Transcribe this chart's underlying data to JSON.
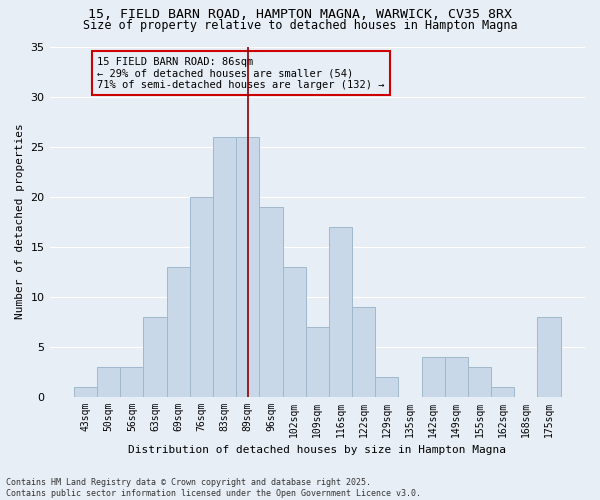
{
  "title1": "15, FIELD BARN ROAD, HAMPTON MAGNA, WARWICK, CV35 8RX",
  "title2": "Size of property relative to detached houses in Hampton Magna",
  "xlabel": "Distribution of detached houses by size in Hampton Magna",
  "ylabel": "Number of detached properties",
  "categories": [
    "43sqm",
    "50sqm",
    "56sqm",
    "63sqm",
    "69sqm",
    "76sqm",
    "83sqm",
    "89sqm",
    "96sqm",
    "102sqm",
    "109sqm",
    "116sqm",
    "122sqm",
    "129sqm",
    "135sqm",
    "142sqm",
    "149sqm",
    "155sqm",
    "162sqm",
    "168sqm",
    "175sqm"
  ],
  "values": [
    1,
    3,
    3,
    8,
    13,
    20,
    26,
    26,
    19,
    13,
    7,
    17,
    9,
    2,
    0,
    4,
    4,
    3,
    1,
    0,
    8
  ],
  "bar_color": "#c8d8e8",
  "bar_edgecolor": "#a0b8cc",
  "annotation_text": "15 FIELD BARN ROAD: 86sqm\n← 29% of detached houses are smaller (54)\n71% of semi-detached houses are larger (132) →",
  "vline_color": "#8b0000",
  "vline_x": 7.0,
  "ylim": [
    0,
    35
  ],
  "yticks": [
    0,
    5,
    10,
    15,
    20,
    25,
    30,
    35
  ],
  "footer": "Contains HM Land Registry data © Crown copyright and database right 2025.\nContains public sector information licensed under the Open Government Licence v3.0.",
  "background_color": "#e8eef5",
  "title_fontsize": 9.5,
  "subtitle_fontsize": 8.5,
  "annotation_fontsize": 7.5,
  "annotation_box_edgecolor": "#cc0000",
  "ylabel_fontsize": 8,
  "xlabel_fontsize": 8,
  "tick_fontsize": 7,
  "footer_fontsize": 6,
  "grid_color": "#ffffff"
}
